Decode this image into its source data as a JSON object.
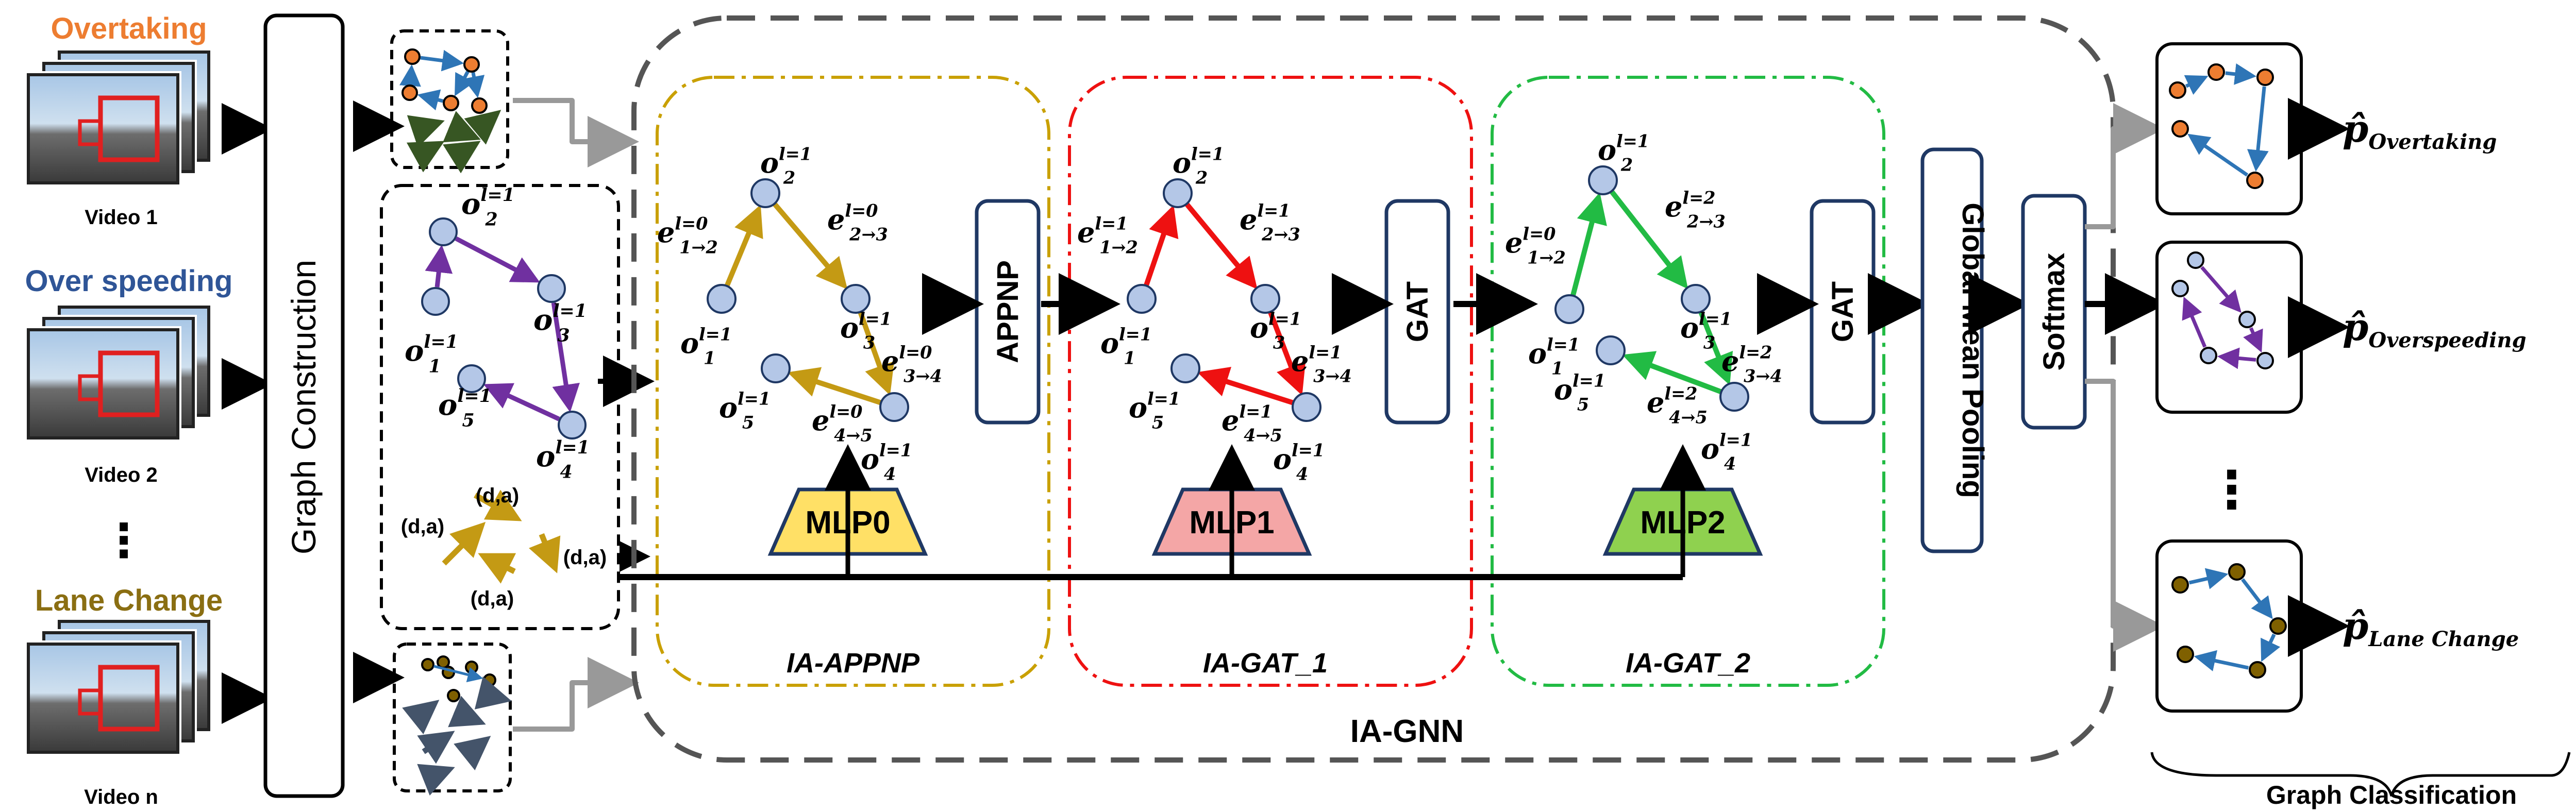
{
  "inputs": {
    "labels": [
      "Overtaking",
      "Over speeding",
      "Lane Change"
    ],
    "label_colors": [
      "#ed7d31",
      "#2f5597",
      "#8a6e12"
    ],
    "videos": [
      "Video 1",
      "Video 2",
      "Video n"
    ],
    "ellipsis": "⋮"
  },
  "graph_construction": "Graph Construction",
  "edge_label": "(d,a)",
  "ia_gnn": {
    "title": "IA-GNN",
    "stages": [
      {
        "name": "IA-APPNP",
        "mlp": "MLP0",
        "block": "APPNP",
        "color": "#c9a000",
        "edge_color": "#c49a14",
        "mlp_fill": "#ffe066",
        "edges": [
          "e",
          "1→2",
          "l=0",
          "e",
          "2→3",
          "l=0",
          "e",
          "3→4",
          "l=0",
          "e",
          "4→5",
          "l=0"
        ]
      },
      {
        "name": "IA-GAT_1",
        "mlp": "MLP1",
        "block": "GAT",
        "color": "#ee1111",
        "edge_color": "#ee1111",
        "mlp_fill": "#f4a6a6",
        "edges": [
          "e",
          "1→2",
          "l=1",
          "e",
          "2→3",
          "l=1",
          "e",
          "3→4",
          "l=1",
          "e",
          "4→5",
          "l=1"
        ]
      },
      {
        "name": "IA-GAT_2",
        "mlp": "MLP2",
        "block": "GAT",
        "color": "#22bb44",
        "edge_color": "#22bb44",
        "mlp_fill": "#8fd14f",
        "edges": [
          "e",
          "1→2",
          "l=0",
          "e",
          "2→3",
          "l=2",
          "e",
          "3→4",
          "l=2",
          "e",
          "4→5",
          "l=2"
        ]
      }
    ],
    "node_label": "o",
    "node_sup": "l=1",
    "node_subs": [
      "1",
      "2",
      "3",
      "4",
      "5"
    ]
  },
  "pooling": "Global Mean Pooling",
  "softmax": "Softmax",
  "outputs": {
    "p_symbol": "p̂",
    "classes": [
      "Overtaking",
      "Overspeeding",
      "Lane Change"
    ],
    "ellipsis": "⋮",
    "caption": "Graph Classification"
  },
  "colors": {
    "node_fill": "#b4c7e7",
    "node_stroke": "#1f3864",
    "overtaking_node": "#ed7d31",
    "overspeeding_edge": "#7030a0",
    "lanechange_node": "#7f6000",
    "graph_edge_blue": "#2e75b6",
    "graph_edge_green": "#375623",
    "block_stroke": "#1f3864"
  }
}
